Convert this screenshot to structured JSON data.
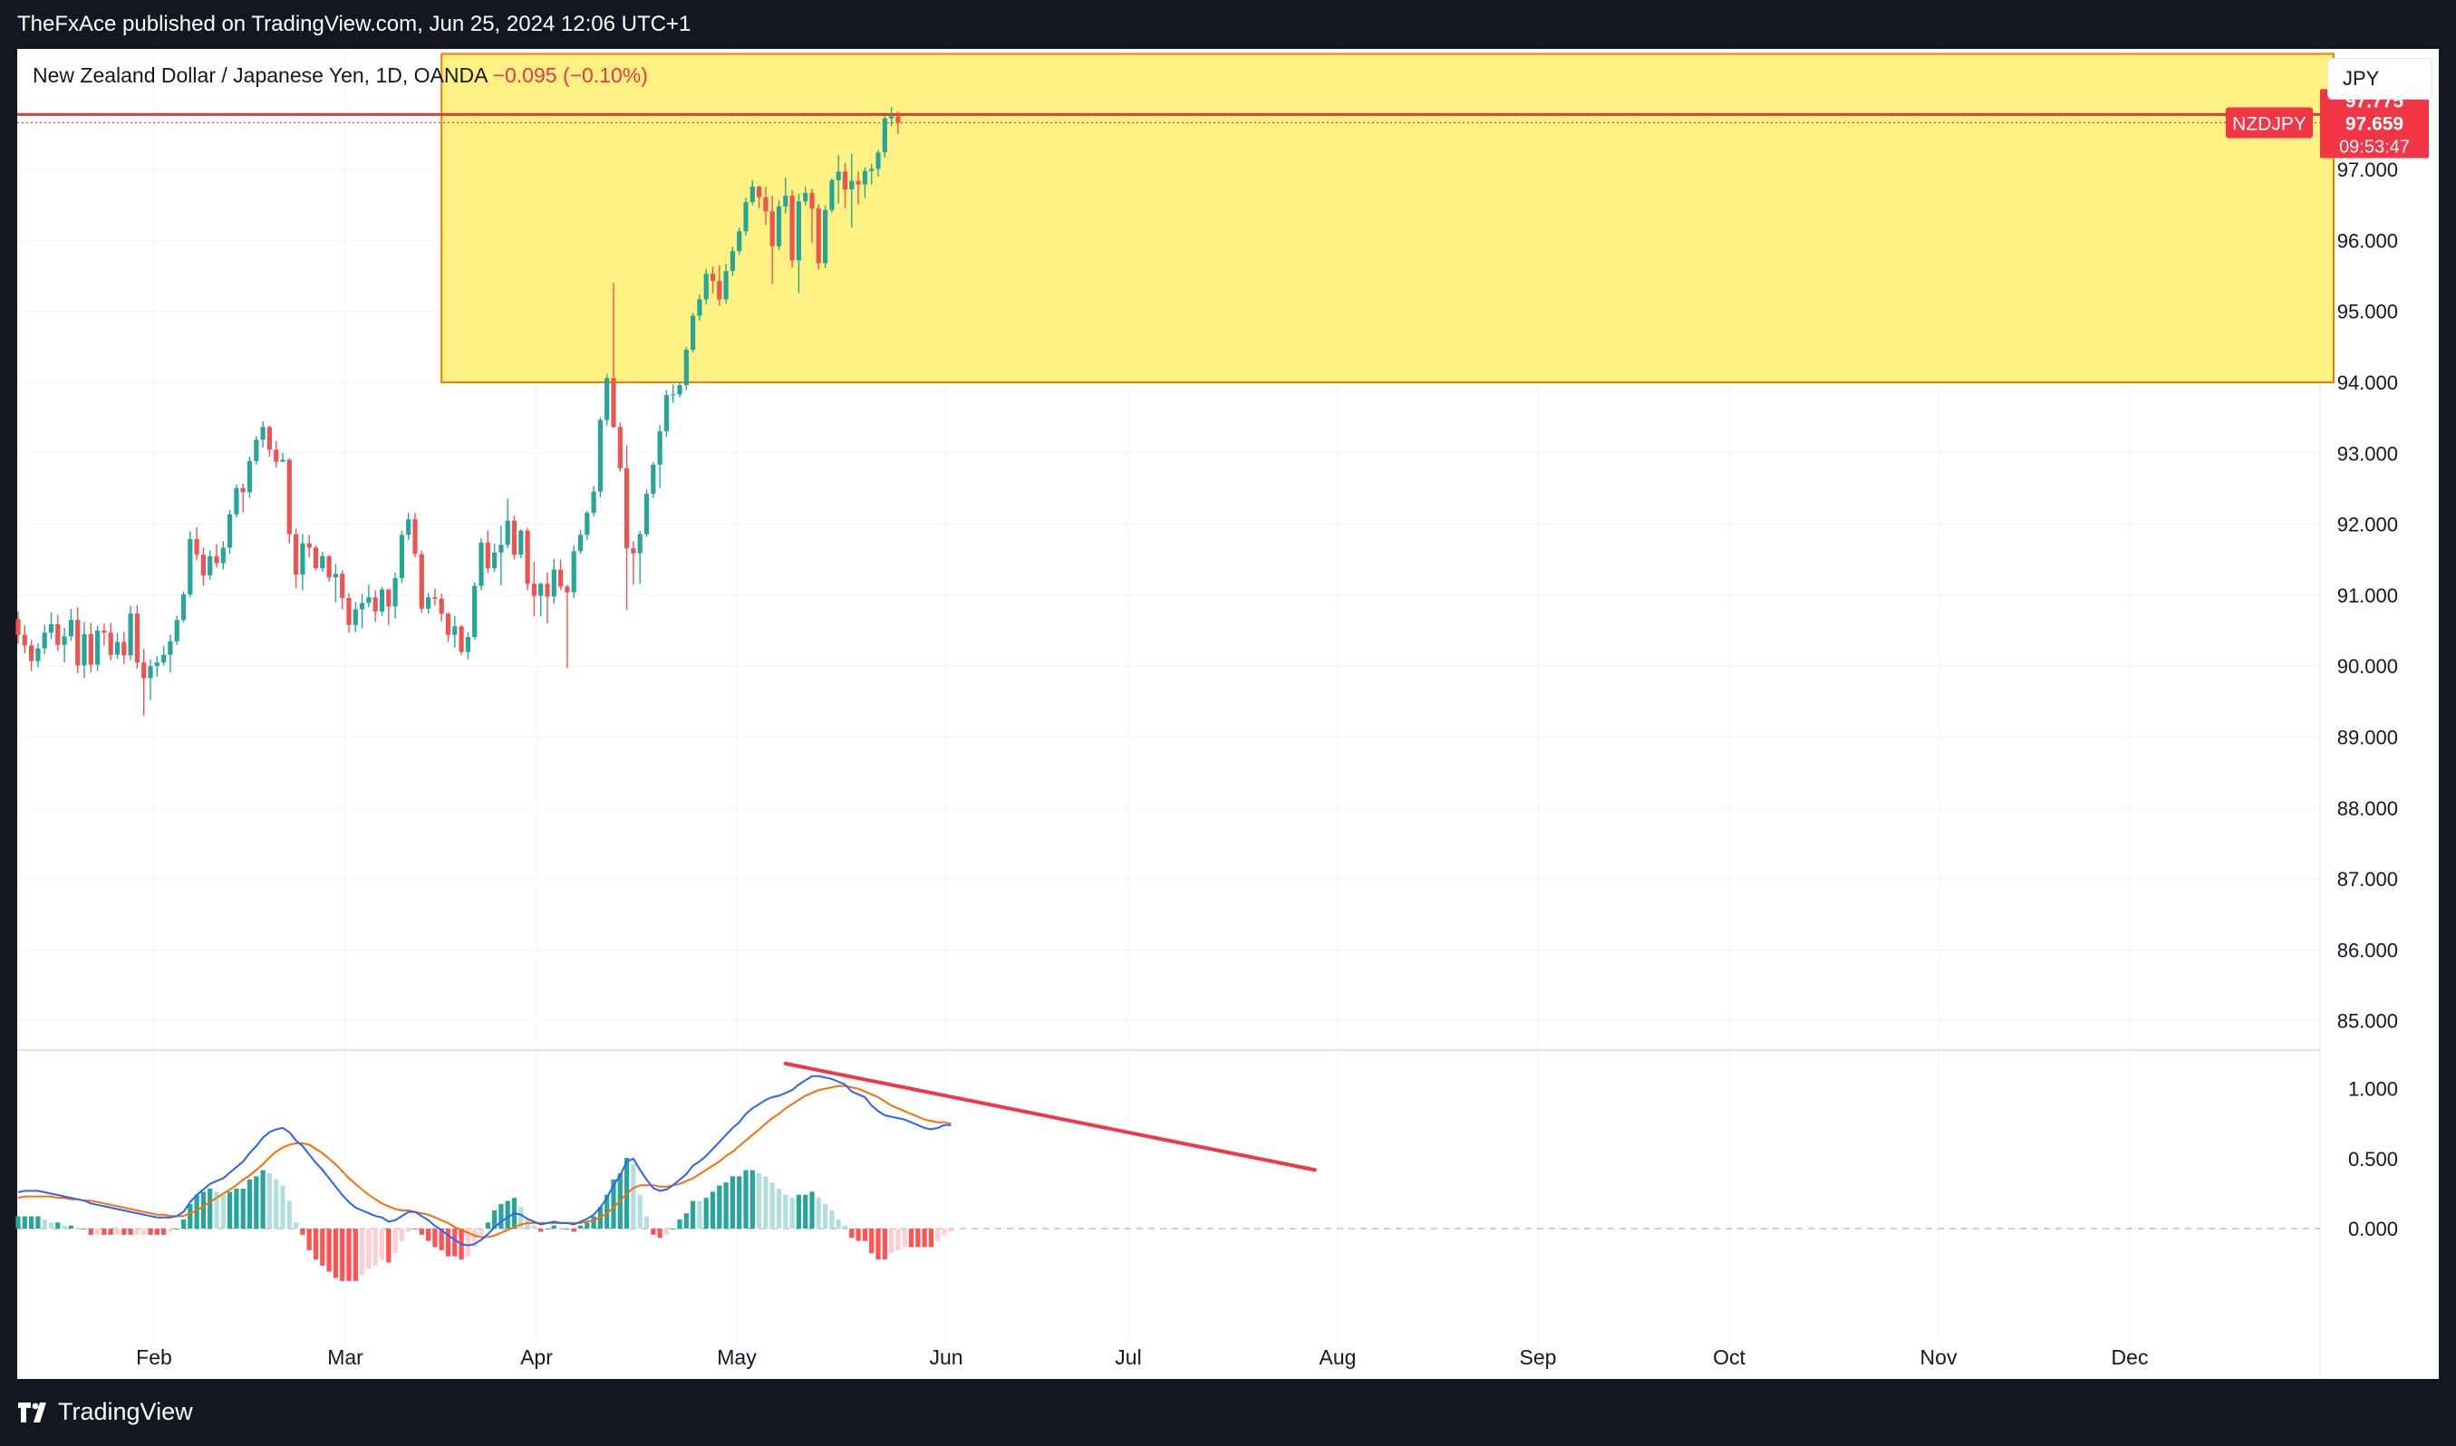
{
  "header": {
    "publisher": "TheFxAce published on TradingView.com, Jun 25, 2024 12:06 UTC+1"
  },
  "legend": {
    "title": "New Zealand Dollar / Japanese Yen, 1D, OANDA",
    "change": "−0.095 (−0.10%)"
  },
  "currency_button": "JPY",
  "footer": {
    "brand": "TradingView"
  },
  "labels": {
    "symbol": "NZDJPY",
    "high_level": "97.775",
    "last_price": "97.659",
    "countdown": "09:53:47"
  },
  "colors": {
    "up": "#26a69a",
    "down": "#ef5350",
    "zone_fill": "#fff176",
    "zone_border": "#f57c00",
    "level_line": "#e53935",
    "macd": "#2962ff",
    "signal": "#ff6d00",
    "trend": "#f23645"
  },
  "chart_data": [
    {
      "type": "candlestick",
      "symbol": "NZDJPY",
      "timeframe": "1D",
      "ylim": [
        84.6,
        98.7
      ],
      "price_ticks": [
        "85.000",
        "86.000",
        "87.000",
        "88.000",
        "89.000",
        "90.000",
        "91.000",
        "92.000",
        "93.000",
        "94.000",
        "95.000",
        "96.000",
        "97.000"
      ],
      "x_ticks": [
        "Feb",
        "Mar",
        "Apr",
        "May",
        "Jun",
        "Jul",
        "Aug",
        "Sep",
        "Oct",
        "Nov",
        "Dec"
      ],
      "candles_ohlc": [
        [
          90.66,
          90.77,
          90.31,
          90.44
        ],
        [
          90.44,
          90.58,
          90.18,
          90.29
        ],
        [
          90.29,
          90.37,
          89.93,
          90.07
        ],
        [
          90.07,
          90.32,
          89.98,
          90.25
        ],
        [
          90.25,
          90.58,
          90.17,
          90.47
        ],
        [
          90.47,
          90.76,
          90.38,
          90.59
        ],
        [
          90.59,
          90.72,
          90.21,
          90.3
        ],
        [
          90.3,
          90.54,
          90.05,
          90.42
        ],
        [
          90.42,
          90.81,
          90.36,
          90.65
        ],
        [
          90.65,
          90.83,
          89.9,
          90.01
        ],
        [
          90.01,
          90.62,
          89.83,
          90.45
        ],
        [
          90.45,
          90.61,
          89.91,
          90.02
        ],
        [
          90.02,
          90.57,
          89.93,
          90.5
        ],
        [
          90.5,
          90.6,
          90.29,
          90.47
        ],
        [
          90.47,
          90.61,
          90.08,
          90.16
        ],
        [
          90.16,
          90.47,
          90.1,
          90.34
        ],
        [
          90.34,
          90.48,
          90.03,
          90.15
        ],
        [
          90.15,
          90.85,
          90.08,
          90.74
        ],
        [
          90.74,
          90.86,
          89.96,
          90.05
        ],
        [
          90.05,
          90.24,
          89.3,
          89.83
        ],
        [
          89.83,
          90.09,
          89.52,
          90.0
        ],
        [
          90.0,
          90.14,
          89.85,
          90.05
        ],
        [
          90.05,
          90.28,
          90.01,
          90.16
        ],
        [
          90.16,
          90.44,
          89.91,
          90.35
        ],
        [
          90.35,
          90.71,
          90.3,
          90.65
        ],
        [
          90.65,
          91.05,
          90.62,
          91.01
        ],
        [
          91.01,
          91.9,
          90.97,
          91.79
        ],
        [
          91.79,
          91.96,
          91.49,
          91.57
        ],
        [
          91.57,
          91.67,
          91.13,
          91.28
        ],
        [
          91.28,
          91.63,
          91.22,
          91.55
        ],
        [
          91.55,
          91.72,
          91.39,
          91.45
        ],
        [
          91.45,
          91.76,
          91.36,
          91.67
        ],
        [
          91.67,
          92.2,
          91.58,
          92.14
        ],
        [
          92.14,
          92.56,
          92.1,
          92.51
        ],
        [
          92.51,
          92.57,
          92.17,
          92.45
        ],
        [
          92.45,
          92.95,
          92.37,
          92.89
        ],
        [
          92.89,
          93.24,
          92.84,
          93.19
        ],
        [
          93.19,
          93.45,
          93.08,
          93.37
        ],
        [
          93.37,
          93.39,
          92.95,
          93.05
        ],
        [
          93.05,
          93.17,
          92.8,
          92.88
        ],
        [
          92.88,
          93.01,
          92.89,
          92.91
        ],
        [
          92.91,
          92.93,
          91.73,
          91.86
        ],
        [
          91.86,
          91.94,
          91.1,
          91.29
        ],
        [
          91.29,
          91.86,
          91.07,
          91.73
        ],
        [
          91.73,
          91.85,
          91.53,
          91.67
        ],
        [
          91.67,
          91.7,
          91.35,
          91.38
        ],
        [
          91.38,
          91.61,
          91.33,
          91.55
        ],
        [
          91.55,
          91.56,
          91.19,
          91.25
        ],
        [
          91.25,
          91.44,
          90.9,
          91.3
        ],
        [
          91.3,
          91.35,
          90.8,
          90.96
        ],
        [
          90.96,
          91.03,
          90.47,
          90.58
        ],
        [
          90.58,
          90.9,
          90.48,
          90.8
        ],
        [
          90.8,
          91.02,
          90.53,
          90.89
        ],
        [
          90.89,
          91.15,
          90.83,
          90.97
        ],
        [
          90.97,
          91.07,
          90.62,
          90.77
        ],
        [
          90.77,
          91.12,
          90.71,
          91.08
        ],
        [
          91.08,
          91.09,
          90.58,
          90.84
        ],
        [
          90.84,
          91.32,
          90.67,
          91.24
        ],
        [
          91.24,
          91.91,
          91.17,
          91.85
        ],
        [
          91.85,
          92.16,
          91.78,
          92.07
        ],
        [
          92.07,
          92.16,
          91.53,
          91.58
        ],
        [
          91.58,
          91.63,
          90.75,
          90.81
        ],
        [
          90.81,
          91.03,
          90.74,
          90.97
        ],
        [
          90.97,
          91.09,
          90.85,
          90.95
        ],
        [
          90.95,
          91.02,
          90.63,
          90.74
        ],
        [
          90.74,
          90.76,
          90.34,
          90.44
        ],
        [
          90.44,
          90.71,
          90.26,
          90.56
        ],
        [
          90.56,
          90.58,
          90.16,
          90.2
        ],
        [
          90.2,
          90.48,
          90.09,
          90.41
        ],
        [
          90.41,
          91.18,
          90.37,
          91.13
        ],
        [
          91.13,
          91.8,
          91.07,
          91.74
        ],
        [
          91.74,
          91.91,
          91.31,
          91.38
        ],
        [
          91.38,
          91.73,
          91.33,
          91.6
        ],
        [
          91.6,
          91.98,
          91.14,
          91.71
        ],
        [
          91.71,
          92.36,
          91.66,
          92.05
        ],
        [
          92.05,
          92.12,
          91.5,
          91.57
        ],
        [
          91.57,
          91.93,
          91.52,
          91.91
        ],
        [
          91.91,
          91.95,
          91.07,
          91.16
        ],
        [
          91.16,
          91.47,
          90.7,
          90.99
        ],
        [
          90.99,
          91.18,
          90.7,
          91.16
        ],
        [
          91.16,
          91.32,
          90.6,
          90.98
        ],
        [
          90.98,
          91.51,
          90.88,
          91.36
        ],
        [
          91.36,
          91.5,
          91.07,
          91.12
        ],
        [
          91.12,
          91.15,
          89.97,
          91.04
        ],
        [
          91.04,
          91.7,
          90.96,
          91.62
        ],
        [
          91.62,
          91.92,
          91.58,
          91.85
        ],
        [
          91.85,
          92.19,
          91.78,
          92.16
        ],
        [
          92.16,
          92.54,
          92.11,
          92.46
        ],
        [
          92.46,
          93.51,
          92.38,
          93.47
        ],
        [
          93.47,
          94.12,
          93.39,
          94.06
        ],
        [
          94.06,
          95.4,
          93.36,
          93.37
        ],
        [
          93.37,
          93.43,
          92.74,
          92.79
        ],
        [
          92.79,
          93.11,
          90.79,
          91.66
        ],
        [
          91.66,
          91.76,
          91.15,
          91.59
        ],
        [
          91.59,
          91.91,
          91.16,
          91.86
        ],
        [
          91.86,
          92.49,
          91.82,
          92.43
        ],
        [
          92.43,
          92.88,
          92.37,
          92.84
        ],
        [
          92.84,
          93.4,
          92.51,
          93.31
        ],
        [
          93.31,
          93.89,
          93.23,
          93.82
        ],
        [
          93.82,
          93.97,
          93.71,
          93.83
        ],
        [
          93.83,
          94.0,
          93.79,
          93.96
        ],
        [
          93.96,
          94.5,
          93.89,
          94.46
        ],
        [
          94.46,
          94.98,
          94.42,
          94.94
        ],
        [
          94.94,
          95.24,
          94.87,
          95.17
        ],
        [
          95.17,
          95.6,
          95.1,
          95.53
        ],
        [
          95.53,
          95.63,
          95.25,
          95.43
        ],
        [
          95.43,
          95.65,
          95.08,
          95.17
        ],
        [
          95.17,
          95.67,
          95.11,
          95.57
        ],
        [
          95.57,
          95.91,
          95.5,
          95.85
        ],
        [
          95.85,
          96.18,
          95.8,
          96.13
        ],
        [
          96.13,
          96.6,
          96.07,
          96.54
        ],
        [
          96.54,
          96.85,
          96.5,
          96.76
        ],
        [
          96.76,
          96.77,
          96.46,
          96.61
        ],
        [
          96.61,
          96.76,
          96.22,
          96.41
        ],
        [
          96.41,
          96.63,
          95.39,
          95.92
        ],
        [
          95.92,
          96.57,
          95.86,
          96.48
        ],
        [
          96.48,
          96.89,
          96.38,
          96.63
        ],
        [
          96.63,
          96.71,
          95.62,
          95.72
        ],
        [
          95.72,
          96.66,
          95.26,
          96.55
        ],
        [
          96.55,
          96.76,
          96.49,
          96.67
        ],
        [
          96.67,
          96.73,
          95.96,
          96.45
        ],
        [
          96.45,
          96.51,
          95.59,
          95.68
        ],
        [
          95.68,
          96.49,
          95.61,
          96.43
        ],
        [
          96.43,
          96.88,
          96.39,
          96.85
        ],
        [
          96.85,
          97.2,
          96.52,
          96.97
        ],
        [
          96.97,
          97.09,
          96.46,
          96.72
        ],
        [
          96.72,
          97.22,
          96.18,
          96.84
        ],
        [
          96.84,
          96.97,
          96.51,
          96.79
        ],
        [
          96.79,
          97.03,
          96.6,
          96.98
        ],
        [
          96.98,
          97.08,
          96.79,
          97.01
        ],
        [
          97.01,
          97.28,
          96.9,
          97.24
        ],
        [
          97.24,
          97.77,
          97.17,
          97.72
        ],
        [
          97.72,
          97.88,
          97.61,
          97.75
        ],
        [
          97.75,
          97.82,
          97.5,
          97.66
        ]
      ],
      "zone": {
        "start_index": 64,
        "end_index": 350,
        "price_top": 98.63,
        "price_bottom": 94.0
      },
      "horizontal_level": 97.775,
      "last_price": 97.659
    },
    {
      "type": "macd",
      "ylim": [
        -0.66,
        1.27
      ],
      "y_ticks": [
        "1.000",
        "0.500",
        "0.000"
      ],
      "macd": [
        0.26,
        0.27,
        0.27,
        0.27,
        0.26,
        0.25,
        0.24,
        0.23,
        0.22,
        0.21,
        0.2,
        0.18,
        0.17,
        0.16,
        0.15,
        0.14,
        0.13,
        0.12,
        0.11,
        0.1,
        0.09,
        0.08,
        0.08,
        0.08,
        0.09,
        0.12,
        0.19,
        0.24,
        0.28,
        0.32,
        0.34,
        0.36,
        0.4,
        0.44,
        0.48,
        0.54,
        0.59,
        0.65,
        0.69,
        0.71,
        0.72,
        0.69,
        0.63,
        0.59,
        0.53,
        0.47,
        0.42,
        0.36,
        0.3,
        0.24,
        0.19,
        0.15,
        0.13,
        0.11,
        0.09,
        0.08,
        0.05,
        0.06,
        0.09,
        0.12,
        0.12,
        0.09,
        0.06,
        0.02,
        -0.01,
        -0.05,
        -0.08,
        -0.11,
        -0.12,
        -0.11,
        -0.08,
        -0.04,
        0.01,
        0.05,
        0.08,
        0.11,
        0.1,
        0.07,
        0.05,
        0.03,
        0.04,
        0.05,
        0.04,
        0.04,
        0.03,
        0.05,
        0.07,
        0.1,
        0.15,
        0.22,
        0.31,
        0.38,
        0.48,
        0.5,
        0.42,
        0.35,
        0.29,
        0.27,
        0.28,
        0.31,
        0.35,
        0.39,
        0.45,
        0.48,
        0.52,
        0.57,
        0.62,
        0.67,
        0.72,
        0.76,
        0.82,
        0.86,
        0.89,
        0.92,
        0.94,
        0.95,
        0.97,
        0.99,
        1.03,
        1.06,
        1.09,
        1.09,
        1.08,
        1.07,
        1.05,
        1.03,
        0.98,
        0.96,
        0.94,
        0.88,
        0.84,
        0.81,
        0.8,
        0.79,
        0.78,
        0.76,
        0.74,
        0.72,
        0.71,
        0.72,
        0.74,
        0.74
      ],
      "signal": [
        0.22,
        0.23,
        0.23,
        0.23,
        0.23,
        0.23,
        0.22,
        0.22,
        0.21,
        0.21,
        0.2,
        0.2,
        0.19,
        0.18,
        0.17,
        0.16,
        0.15,
        0.14,
        0.13,
        0.12,
        0.11,
        0.1,
        0.1,
        0.09,
        0.09,
        0.09,
        0.11,
        0.13,
        0.16,
        0.19,
        0.22,
        0.25,
        0.28,
        0.31,
        0.35,
        0.38,
        0.42,
        0.46,
        0.51,
        0.55,
        0.58,
        0.6,
        0.61,
        0.61,
        0.6,
        0.57,
        0.54,
        0.5,
        0.46,
        0.41,
        0.36,
        0.32,
        0.28,
        0.24,
        0.21,
        0.18,
        0.16,
        0.14,
        0.13,
        0.13,
        0.12,
        0.11,
        0.1,
        0.08,
        0.06,
        0.04,
        0.01,
        -0.01,
        -0.03,
        -0.05,
        -0.06,
        -0.06,
        -0.05,
        -0.03,
        -0.01,
        0.01,
        0.03,
        0.04,
        0.04,
        0.04,
        0.04,
        0.04,
        0.04,
        0.04,
        0.04,
        0.04,
        0.05,
        0.06,
        0.08,
        0.11,
        0.15,
        0.2,
        0.25,
        0.29,
        0.31,
        0.31,
        0.31,
        0.3,
        0.3,
        0.31,
        0.32,
        0.34,
        0.36,
        0.39,
        0.42,
        0.45,
        0.48,
        0.52,
        0.55,
        0.59,
        0.63,
        0.67,
        0.71,
        0.75,
        0.79,
        0.82,
        0.86,
        0.89,
        0.92,
        0.95,
        0.97,
        0.99,
        1.0,
        1.01,
        1.02,
        1.02,
        1.01,
        1.0,
        0.98,
        0.96,
        0.94,
        0.91,
        0.88,
        0.86,
        0.84,
        0.82,
        0.8,
        0.78,
        0.77,
        0.76,
        0.76,
        0.75
      ],
      "trendline": {
        "from_index": 116,
        "from_value": 1.18,
        "to_index": 196,
        "to_value": 0.42
      }
    }
  ]
}
